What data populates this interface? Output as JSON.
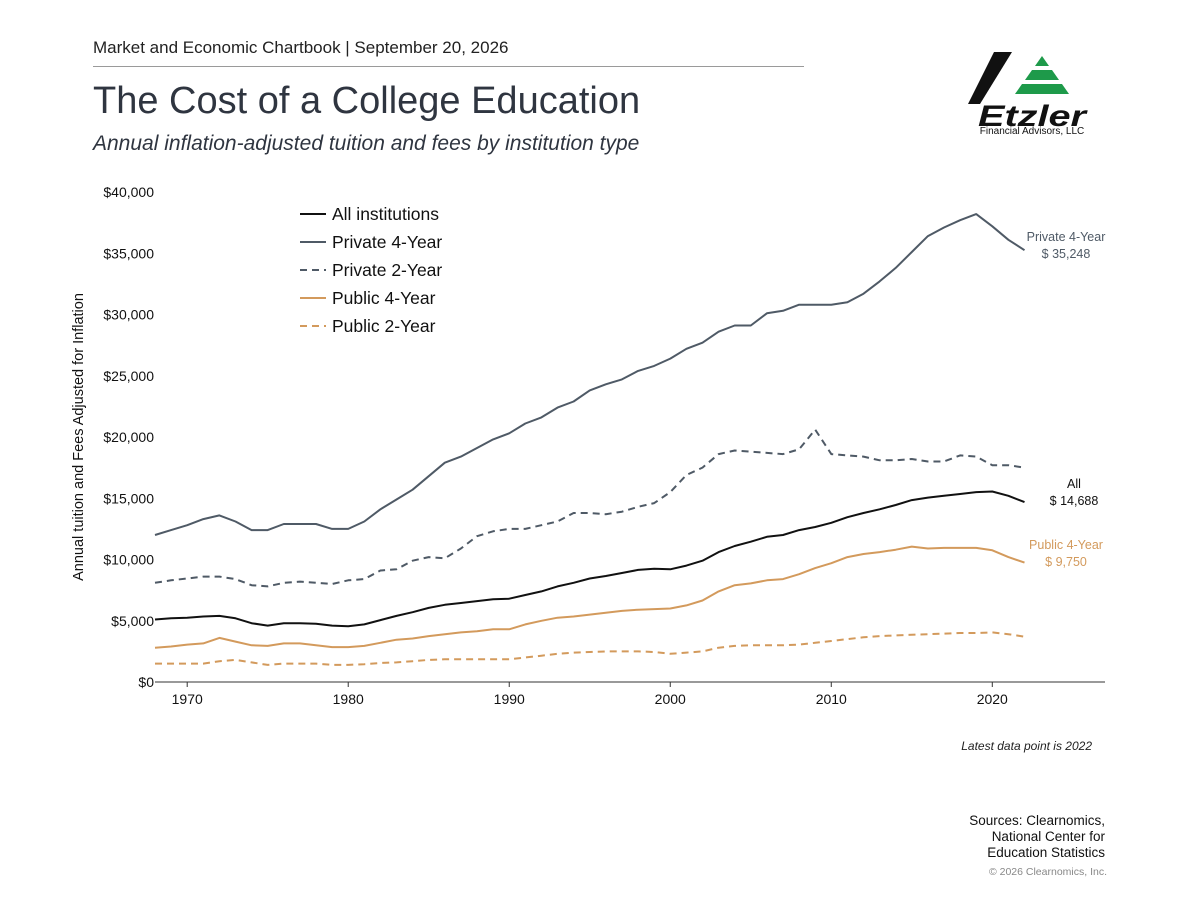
{
  "header": {
    "publication": "Market and Economic Chartbook | September 20, 2026",
    "title": "The Cost of a College Education",
    "subtitle": "Annual inflation-adjusted tuition and fees by institution type"
  },
  "logo": {
    "wordmark": "Etzler",
    "tagline": "Financial Advisors, LLC",
    "colors": {
      "bar": "#111111",
      "triangle": "#1e9a4a"
    }
  },
  "footer": {
    "note": "Latest data point is 2022",
    "sources": [
      "Sources: Clearnomics,",
      "National Center for",
      "Education Statistics"
    ],
    "copyright": "© 2026 Clearnomics, Inc."
  },
  "chart_data": {
    "type": "line",
    "ylabel": "Annual tuition and Fees Adjusted for Inflation",
    "xlabel": "",
    "xlim": [
      1968,
      2027
    ],
    "ylim": [
      0,
      40000
    ],
    "x_ticks": [
      1970,
      1980,
      1990,
      2000,
      2010,
      2020
    ],
    "y_ticks": [
      0,
      5000,
      10000,
      15000,
      20000,
      25000,
      30000,
      35000,
      40000
    ],
    "y_tick_labels": [
      "$0",
      "$5,000",
      "$10,000",
      "$15,000",
      "$20,000",
      "$25,000",
      "$30,000",
      "$35,000",
      "$40,000"
    ],
    "grid": false,
    "legend_position": "top-left",
    "x": [
      1968,
      1969,
      1970,
      1971,
      1972,
      1973,
      1974,
      1975,
      1976,
      1977,
      1978,
      1979,
      1980,
      1981,
      1982,
      1983,
      1984,
      1985,
      1986,
      1987,
      1988,
      1989,
      1990,
      1991,
      1992,
      1993,
      1994,
      1995,
      1996,
      1997,
      1998,
      1999,
      2000,
      2001,
      2002,
      2003,
      2004,
      2005,
      2006,
      2007,
      2008,
      2009,
      2010,
      2011,
      2012,
      2013,
      2014,
      2015,
      2016,
      2017,
      2018,
      2019,
      2020,
      2021,
      2022
    ],
    "series": [
      {
        "name": "All institutions",
        "color": "#111111",
        "dash": "solid",
        "values": [
          5100,
          5200,
          5250,
          5350,
          5400,
          5200,
          4800,
          4600,
          4800,
          4800,
          4750,
          4600,
          4550,
          4700,
          5050,
          5400,
          5700,
          6050,
          6300,
          6450,
          6600,
          6750,
          6800,
          7100,
          7400,
          7800,
          8100,
          8450,
          8650,
          8900,
          9150,
          9250,
          9200,
          9500,
          9900,
          10600,
          11100,
          11450,
          11850,
          12000,
          12400,
          12650,
          13000,
          13450,
          13800,
          14100,
          14450,
          14850,
          15050,
          15200,
          15350,
          15500,
          15550,
          15200,
          14688
        ],
        "end_label": [
          "All",
          "$ 14,688"
        ]
      },
      {
        "name": "Private 4-Year",
        "color": "#4f5a66",
        "dash": "solid",
        "values": [
          12000,
          12400,
          12800,
          13300,
          13600,
          13100,
          12400,
          12400,
          12900,
          12900,
          12900,
          12500,
          12500,
          13100,
          14100,
          14900,
          15700,
          16800,
          17900,
          18400,
          19100,
          19800,
          20300,
          21100,
          21600,
          22400,
          22900,
          23800,
          24300,
          24700,
          25400,
          25800,
          26400,
          27200,
          27700,
          28600,
          29100,
          29100,
          30100,
          30300,
          30800,
          30800,
          30800,
          31000,
          31700,
          32700,
          33800,
          35100,
          36400,
          37100,
          37700,
          38200,
          37200,
          36100,
          35248
        ],
        "end_label": [
          "Private 4-Year",
          "$ 35,248"
        ]
      },
      {
        "name": "Private 2-Year",
        "color": "#4f5a66",
        "dash": "dashed",
        "values": [
          8100,
          8300,
          8450,
          8600,
          8600,
          8400,
          7900,
          7800,
          8100,
          8200,
          8100,
          8000,
          8300,
          8400,
          9100,
          9200,
          9900,
          10200,
          10100,
          10900,
          11900,
          12300,
          12500,
          12500,
          12800,
          13100,
          13800,
          13800,
          13700,
          13900,
          14300,
          14600,
          15500,
          16900,
          17500,
          18600,
          18900,
          18800,
          18700,
          18600,
          19000,
          20600,
          18600,
          18500,
          18400,
          18100,
          18100,
          18200,
          18000,
          18000,
          18500,
          18400,
          17700,
          17700,
          17500
        ]
      },
      {
        "name": "Public 4-Year",
        "color": "#d39a5c",
        "dash": "solid",
        "values": [
          2800,
          2900,
          3050,
          3150,
          3600,
          3300,
          3000,
          2950,
          3150,
          3150,
          3000,
          2850,
          2850,
          2950,
          3200,
          3450,
          3550,
          3750,
          3900,
          4050,
          4150,
          4300,
          4300,
          4700,
          5000,
          5250,
          5350,
          5500,
          5650,
          5800,
          5900,
          5950,
          6000,
          6250,
          6650,
          7400,
          7900,
          8050,
          8300,
          8400,
          8800,
          9300,
          9700,
          10200,
          10450,
          10600,
          10800,
          11050,
          10900,
          10950,
          10950,
          10950,
          10750,
          10200,
          9750
        ],
        "end_label": [
          "Public 4-Year",
          "$ 9,750"
        ]
      },
      {
        "name": "Public 2-Year",
        "color": "#d39a5c",
        "dash": "dashed",
        "values": [
          1500,
          1500,
          1500,
          1500,
          1700,
          1800,
          1600,
          1400,
          1500,
          1500,
          1500,
          1400,
          1400,
          1450,
          1550,
          1600,
          1700,
          1800,
          1850,
          1850,
          1850,
          1850,
          1850,
          2000,
          2150,
          2300,
          2400,
          2450,
          2500,
          2500,
          2500,
          2450,
          2300,
          2400,
          2500,
          2800,
          2950,
          3000,
          3000,
          3000,
          3050,
          3200,
          3350,
          3500,
          3650,
          3750,
          3800,
          3850,
          3900,
          3950,
          4000,
          4000,
          4050,
          3900,
          3700
        ]
      }
    ]
  }
}
